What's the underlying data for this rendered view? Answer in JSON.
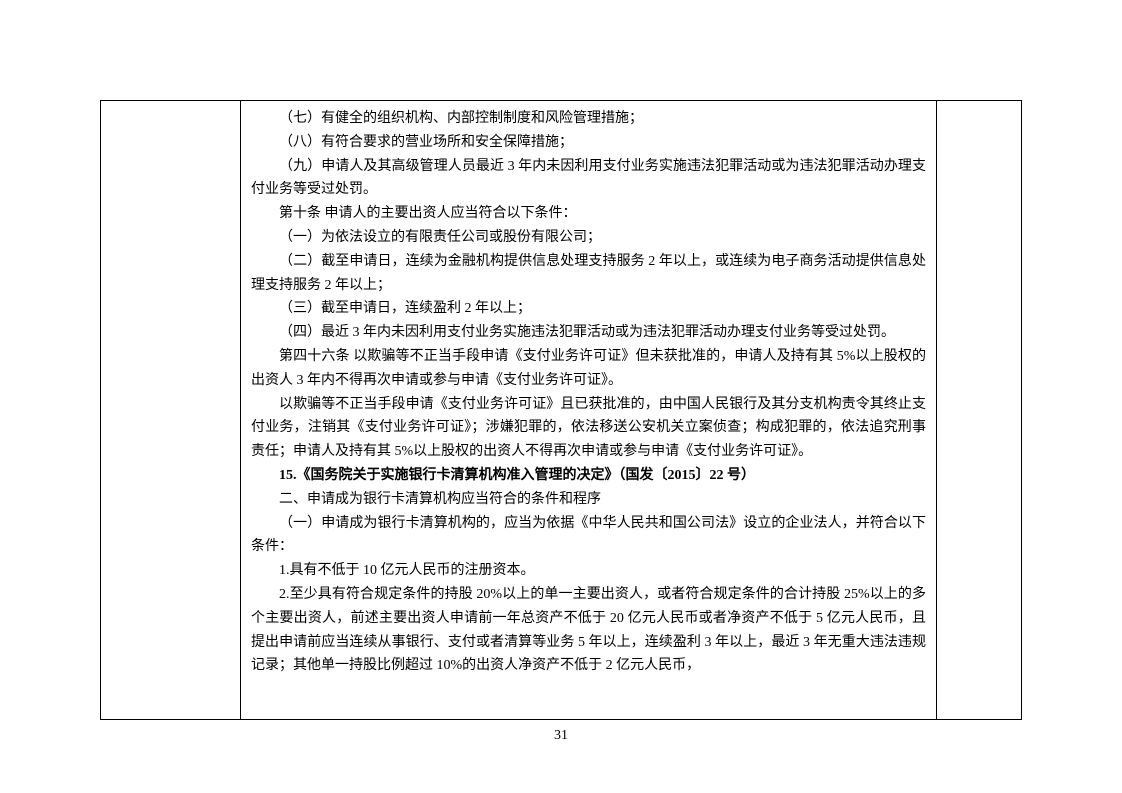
{
  "doc": {
    "lines": [
      {
        "cls": "para",
        "bold": false,
        "text": "（七）有健全的组织机构、内部控制制度和风险管理措施；"
      },
      {
        "cls": "para",
        "bold": false,
        "text": "（八）有符合要求的营业场所和安全保障措施；"
      },
      {
        "cls": "para",
        "bold": false,
        "text": "（九）申请人及其高级管理人员最近 3 年内未因利用支付业务实施违法犯罪活动或为违法犯罪活动办理支付业务等受过处罚。"
      },
      {
        "cls": "para",
        "bold": false,
        "text": "第十条  申请人的主要出资人应当符合以下条件："
      },
      {
        "cls": "para",
        "bold": false,
        "text": "（一）为依法设立的有限责任公司或股份有限公司；"
      },
      {
        "cls": "para",
        "bold": false,
        "text": "（二）截至申请日，连续为金融机构提供信息处理支持服务 2 年以上，或连续为电子商务活动提供信息处理支持服务 2 年以上；"
      },
      {
        "cls": "para",
        "bold": false,
        "text": "（三）截至申请日，连续盈利 2 年以上；"
      },
      {
        "cls": "para",
        "bold": false,
        "text": "（四）最近 3 年内未因利用支付业务实施违法犯罪活动或为违法犯罪活动办理支付业务等受过处罚。"
      },
      {
        "cls": "para",
        "bold": false,
        "text": "第四十六条  以欺骗等不正当手段申请《支付业务许可证》但未获批准的，申请人及持有其 5%以上股权的出资人 3 年内不得再次申请或参与申请《支付业务许可证》。"
      },
      {
        "cls": "para",
        "bold": false,
        "text": "以欺骗等不正当手段申请《支付业务许可证》且已获批准的，由中国人民银行及其分支机构责令其终止支付业务，注销其《支付业务许可证》；涉嫌犯罪的，依法移送公安机关立案侦查；构成犯罪的，依法追究刑事责任；申请人及持有其 5%以上股权的出资人不得再次申请或参与申请《支付业务许可证》。"
      },
      {
        "cls": "para",
        "bold": true,
        "text": "15.《国务院关于实施银行卡清算机构准入管理的决定》（国发〔2015〕22 号）"
      },
      {
        "cls": "para",
        "bold": false,
        "text": "二、申请成为银行卡清算机构应当符合的条件和程序"
      },
      {
        "cls": "para",
        "bold": false,
        "text": "（一）申请成为银行卡清算机构的，应当为依据《中华人民共和国公司法》设立的企业法人，并符合以下条件："
      },
      {
        "cls": "para",
        "bold": false,
        "text": "1.具有不低于 10 亿元人民币的注册资本。"
      },
      {
        "cls": "para",
        "bold": false,
        "text": "2.至少具有符合规定条件的持股 20%以上的单一主要出资人，或者符合规定条件的合计持股 25%以上的多个主要出资人，前述主要出资人申请前一年总资产不低于 20 亿元人民币或者净资产不低于 5 亿元人民币，且提出申请前应当连续从事银行、支付或者清算等业务 5 年以上，连续盈利 3 年以上，最近 3 年无重大违法违规记录；其他单一持股比例超过 10%的出资人净资产不低于 2 亿元人民币，"
      }
    ],
    "page_number": "31"
  }
}
